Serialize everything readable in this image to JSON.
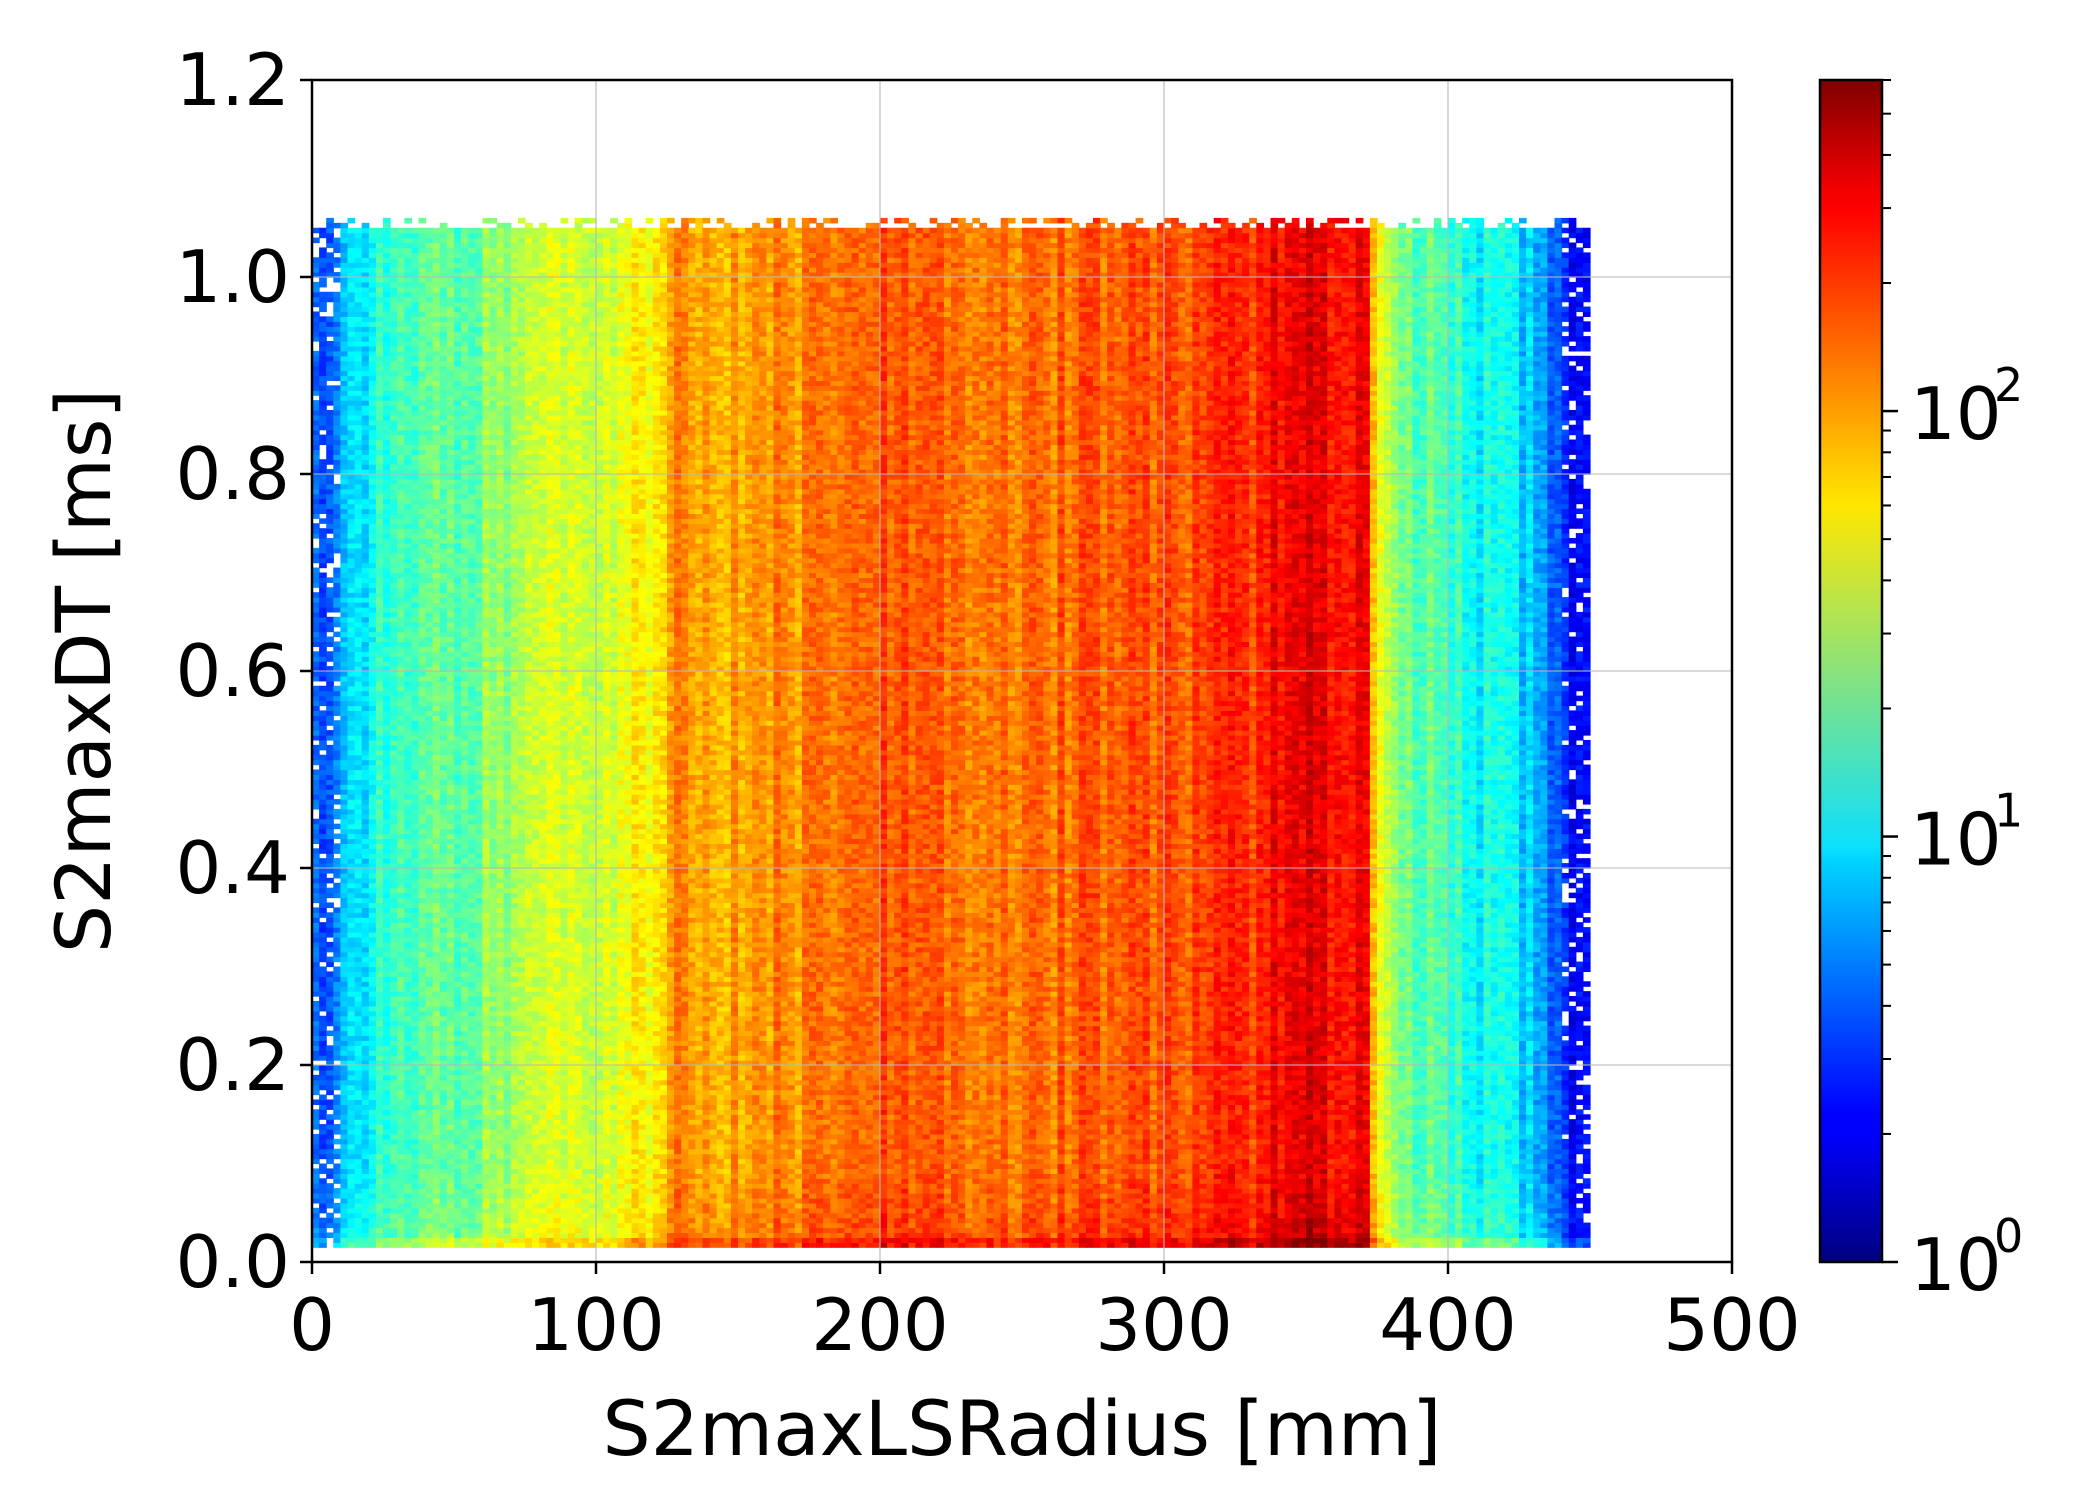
{
  "chart_data": {
    "type": "heatmap",
    "title": "",
    "xlabel": "S2maxLSRadius [mm]",
    "ylabel": "S2maxDT [ms]",
    "xlim": [
      0,
      500
    ],
    "ylim": [
      0,
      1.2
    ],
    "x_ticks": [
      "0",
      "100",
      "200",
      "300",
      "400",
      "500"
    ],
    "y_ticks": [
      "0.0",
      "0.2",
      "0.4",
      "0.6",
      "0.8",
      "1.0",
      "1.2"
    ],
    "grid": true,
    "colormap": "jet",
    "color_scale": "log",
    "colorbar": {
      "range": [
        1,
        600
      ],
      "ticks": [
        {
          "value": 1,
          "base": "10",
          "exp": "0"
        },
        {
          "value": 10,
          "base": "10",
          "exp": "1"
        },
        {
          "value": 100,
          "base": "10",
          "exp": "2"
        }
      ]
    },
    "data_extent": {
      "x": [
        0,
        450
      ],
      "y": [
        0.015,
        1.06
      ]
    },
    "bin_width_x_mm": 2.5,
    "bin_width_y_ms": 0.005,
    "radial_profile": {
      "x_mm": [
        0,
        10,
        20,
        40,
        60,
        80,
        100,
        120,
        130,
        140,
        160,
        180,
        200,
        220,
        240,
        260,
        280,
        300,
        320,
        330,
        340,
        350,
        360,
        370,
        375,
        380,
        390,
        400,
        410,
        420,
        430,
        440,
        450
      ],
      "counts": [
        3,
        6,
        12,
        18,
        25,
        35,
        45,
        60,
        110,
        95,
        115,
        120,
        150,
        140,
        145,
        140,
        150,
        155,
        180,
        200,
        260,
        320,
        290,
        280,
        45,
        30,
        20,
        15,
        12,
        10,
        7,
        3,
        2
      ]
    }
  }
}
